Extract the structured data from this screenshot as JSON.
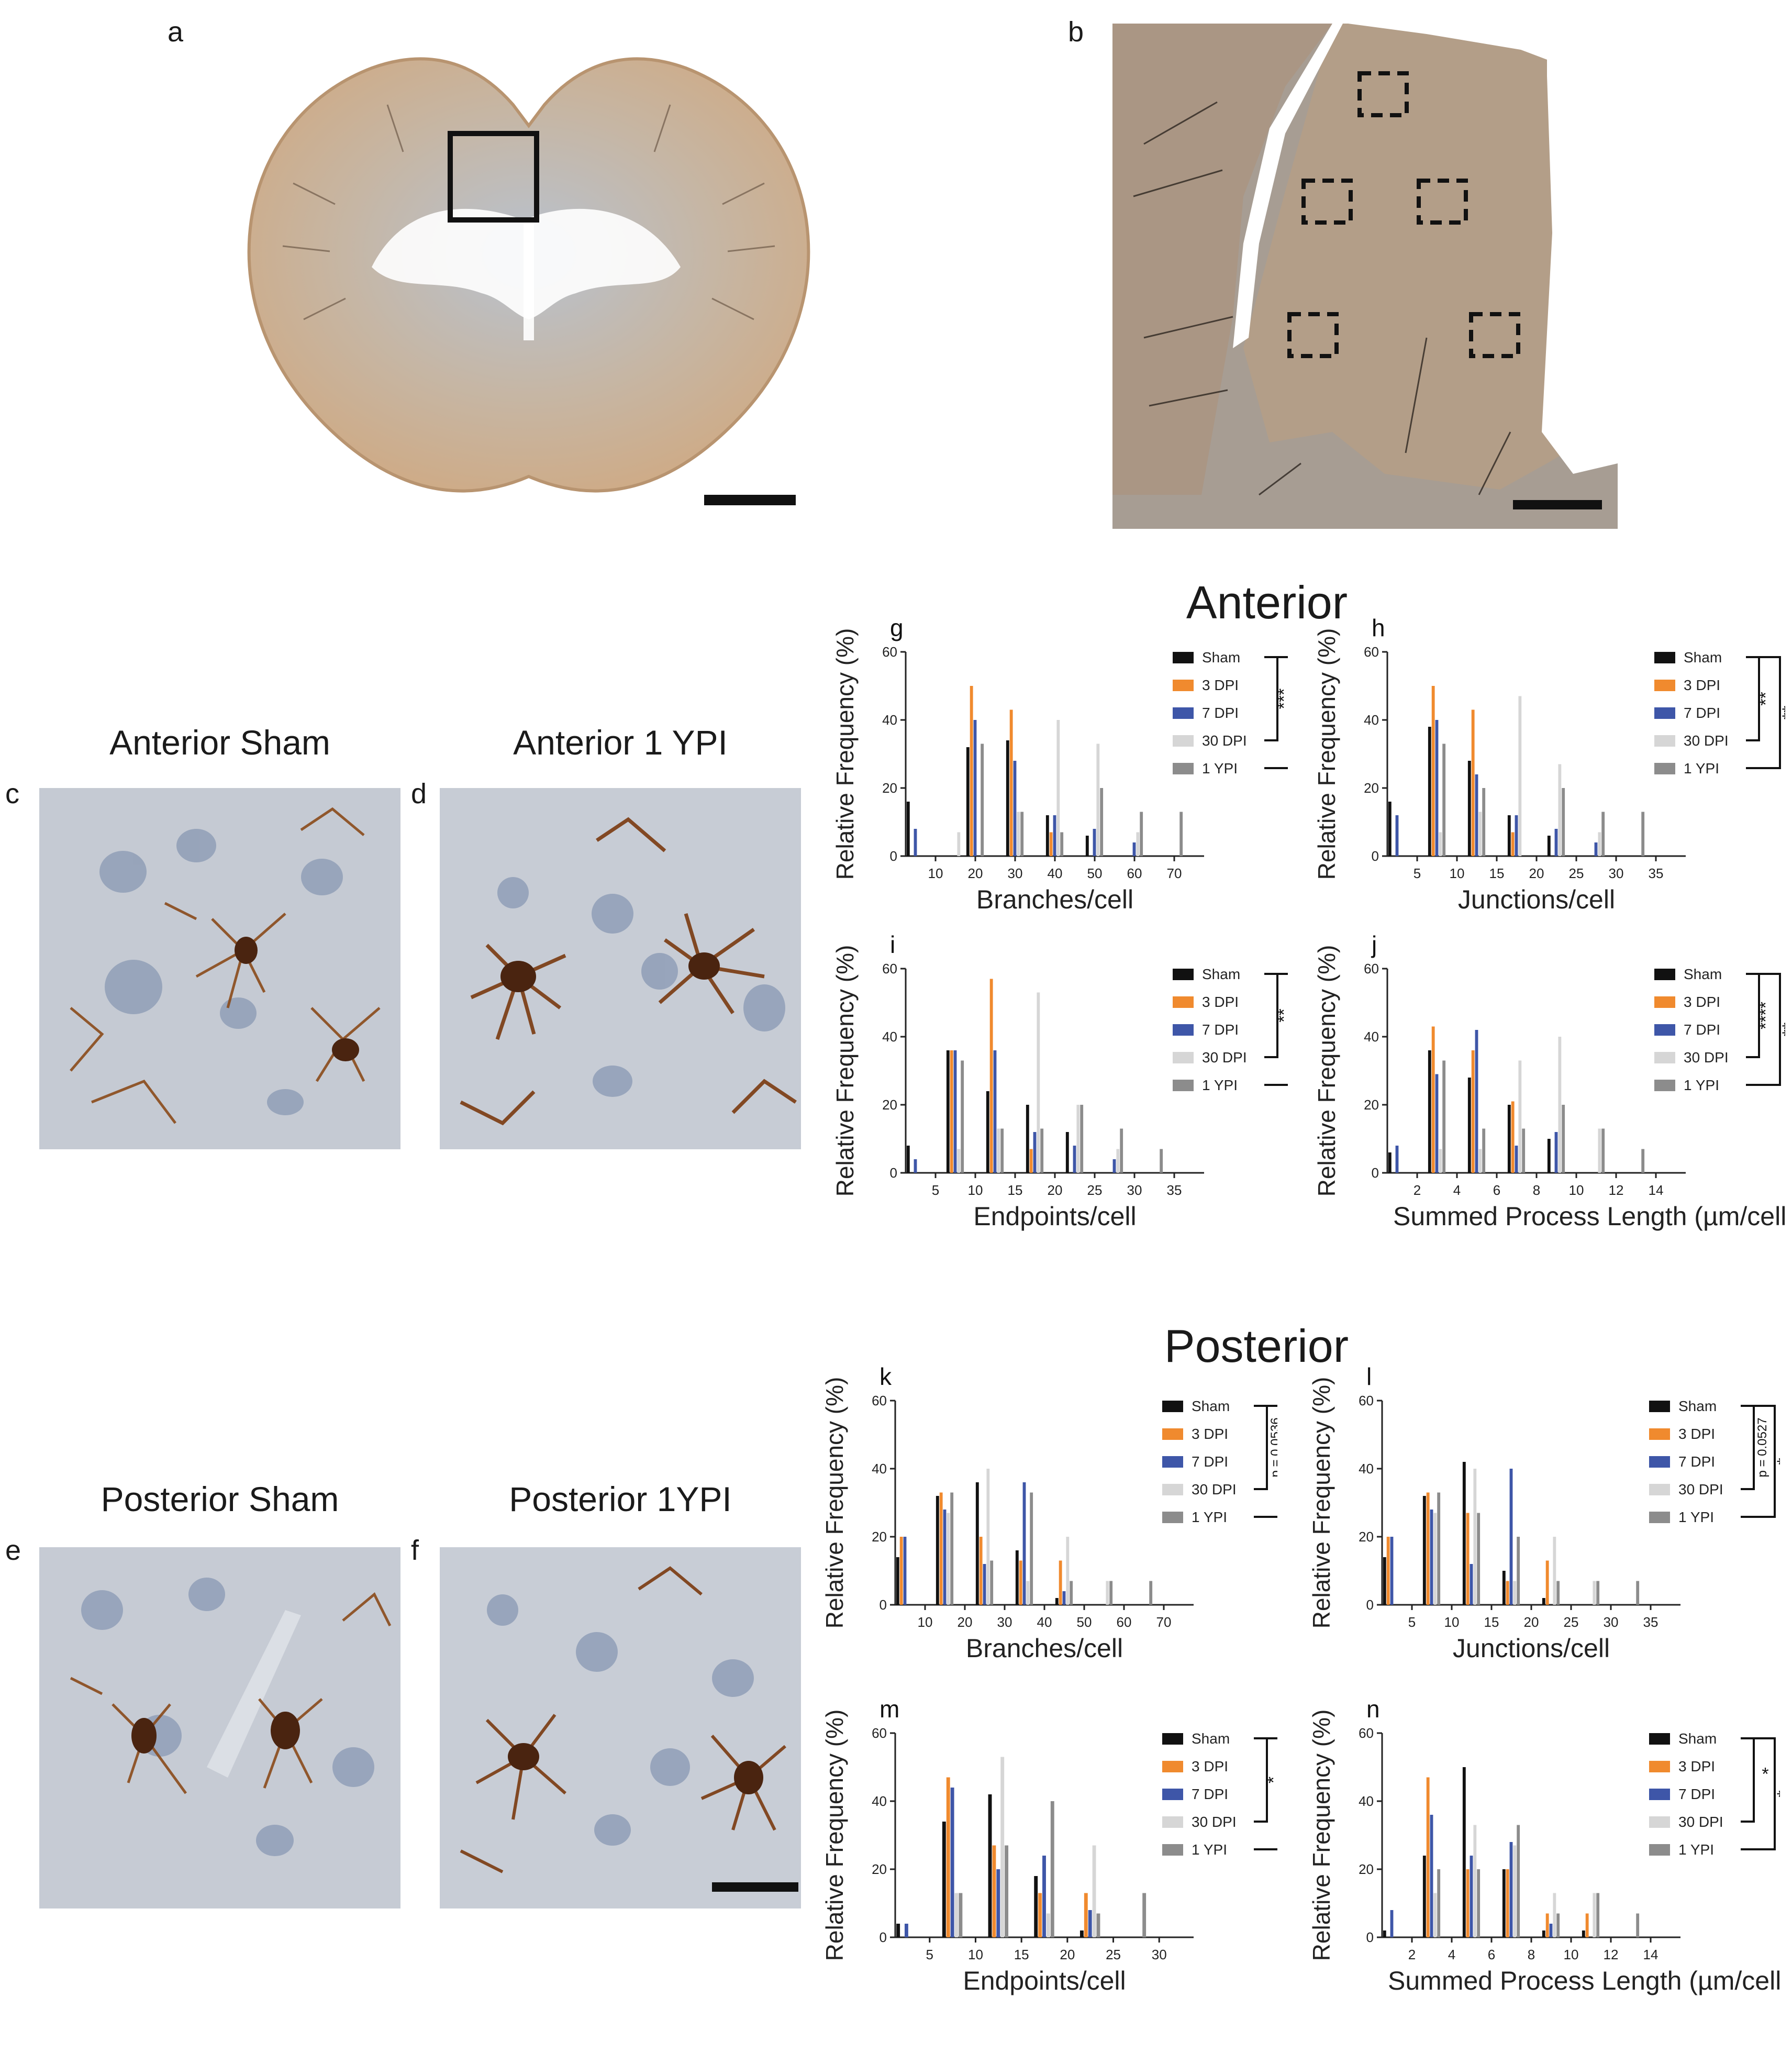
{
  "panel_labels": {
    "a": "a",
    "b": "b",
    "c": "c",
    "d": "d",
    "e": "e",
    "f": "f",
    "g": "g",
    "h": "h",
    "i": "i",
    "j": "j",
    "k": "k",
    "l": "l",
    "m": "m",
    "n": "n"
  },
  "image_titles": {
    "c": "Anterior Sham",
    "d": "Anterior 1 YPI",
    "e": "Posterior Sham",
    "f": "Posterior 1YPI"
  },
  "sections": {
    "anterior": "Anterior",
    "posterior": "Posterior"
  },
  "colors": {
    "Sham": "#111111",
    "3 DPI": "#f08a2e",
    "7 DPI": "#3e56a8",
    "30 DPI": "#d6d6d6",
    "1 YPI": "#8c8c8c",
    "tissue": "#c9ad8c",
    "white_matter": "#b9c4d2"
  },
  "legend_names": [
    "Sham",
    "3 DPI",
    "7 DPI",
    "30 DPI",
    "1 YPI"
  ],
  "chart_data": [
    {
      "id": "g",
      "type": "bar",
      "ylabel": "Relative Frequency (%)",
      "xlabel": "Branches/cell",
      "ylim": [
        0,
        60
      ],
      "yticks": [
        0,
        20,
        40,
        60
      ],
      "xticks": [
        10,
        20,
        30,
        40,
        50,
        60,
        70
      ],
      "categories": [
        5,
        10,
        15,
        20,
        25,
        30,
        35,
        40,
        45,
        50,
        55,
        60,
        65,
        70,
        75
      ],
      "series": [
        {
          "name": "Sham",
          "values": [
            16,
            0,
            0,
            32,
            0,
            34,
            0,
            12,
            0,
            6,
            0,
            0,
            0,
            0,
            0
          ]
        },
        {
          "name": "3 DPI",
          "values": [
            0,
            0,
            0,
            50,
            0,
            43,
            0,
            7,
            0,
            0,
            0,
            0,
            0,
            0,
            0
          ]
        },
        {
          "name": "7 DPI",
          "values": [
            8,
            0,
            0,
            40,
            0,
            28,
            0,
            12,
            0,
            8,
            0,
            4,
            0,
            0,
            0
          ]
        },
        {
          "name": "30 DPI",
          "values": [
            0,
            0,
            7,
            0,
            0,
            13,
            0,
            40,
            0,
            33,
            0,
            7,
            0,
            0,
            0
          ]
        },
        {
          "name": "1 YPI",
          "values": [
            0,
            0,
            0,
            33,
            0,
            13,
            0,
            7,
            0,
            20,
            0,
            13,
            0,
            13,
            0
          ]
        }
      ],
      "bracket_inner": "***",
      "bracket_outer": "**",
      "bracket_inner_vertical": true,
      "bracket_span": [
        0,
        4
      ]
    },
    {
      "id": "h",
      "type": "bar",
      "ylabel": "Relative Frequency (%)",
      "xlabel": "Junctions/cell",
      "ylim": [
        0,
        60
      ],
      "yticks": [
        0,
        20,
        40,
        60
      ],
      "xticks": [
        5,
        10,
        15,
        20,
        25,
        30,
        35
      ],
      "categories": [
        2.5,
        5,
        7.5,
        10,
        12.5,
        15,
        17.5,
        20,
        22.5,
        25,
        27.5,
        30,
        32.5,
        35,
        37.5
      ],
      "series": [
        {
          "name": "Sham",
          "values": [
            16,
            0,
            38,
            0,
            28,
            0,
            12,
            0,
            6,
            0,
            0,
            0,
            0,
            0,
            0
          ]
        },
        {
          "name": "3 DPI",
          "values": [
            0,
            0,
            50,
            0,
            43,
            0,
            7,
            0,
            0,
            0,
            0,
            0,
            0,
            0,
            0
          ]
        },
        {
          "name": "7 DPI",
          "values": [
            12,
            0,
            40,
            0,
            24,
            0,
            12,
            0,
            8,
            0,
            4,
            0,
            0,
            0,
            0
          ]
        },
        {
          "name": "30 DPI",
          "values": [
            0,
            0,
            7,
            0,
            13,
            0,
            47,
            0,
            27,
            0,
            7,
            0,
            0,
            0,
            0
          ]
        },
        {
          "name": "1 YPI",
          "values": [
            0,
            0,
            33,
            0,
            20,
            0,
            0,
            0,
            20,
            0,
            13,
            0,
            13,
            0,
            0
          ]
        }
      ],
      "bracket_inner": "**",
      "bracket_outer": "**",
      "bracket_inner_vertical": true,
      "bracket_span": [
        0,
        4
      ]
    },
    {
      "id": "i",
      "type": "bar",
      "ylabel": "Relative Frequency (%)",
      "xlabel": "Endpoints/cell",
      "ylim": [
        0,
        60
      ],
      "yticks": [
        0,
        20,
        40,
        60
      ],
      "xticks": [
        5,
        10,
        15,
        20,
        25,
        30,
        35
      ],
      "categories": [
        2.5,
        5,
        7.5,
        10,
        12.5,
        15,
        17.5,
        20,
        22.5,
        25,
        27.5,
        30,
        32.5,
        35,
        37.5
      ],
      "series": [
        {
          "name": "Sham",
          "values": [
            8,
            0,
            36,
            0,
            24,
            0,
            20,
            0,
            12,
            0,
            0,
            0,
            0,
            0,
            0
          ]
        },
        {
          "name": "3 DPI",
          "values": [
            0,
            0,
            36,
            0,
            57,
            0,
            7,
            0,
            0,
            0,
            0,
            0,
            0,
            0,
            0
          ]
        },
        {
          "name": "7 DPI",
          "values": [
            4,
            0,
            36,
            0,
            36,
            0,
            12,
            0,
            8,
            0,
            4,
            0,
            0,
            0,
            0
          ]
        },
        {
          "name": "30 DPI",
          "values": [
            0,
            0,
            7,
            0,
            13,
            0,
            53,
            0,
            20,
            0,
            7,
            0,
            0,
            0,
            0
          ]
        },
        {
          "name": "1 YPI",
          "values": [
            0,
            0,
            33,
            0,
            13,
            0,
            13,
            0,
            20,
            0,
            13,
            0,
            7,
            0,
            0
          ]
        }
      ],
      "bracket_inner": "**",
      "bracket_outer": "*",
      "bracket_inner_vertical": true,
      "bracket_span": [
        0,
        4
      ]
    },
    {
      "id": "j",
      "type": "bar",
      "ylabel": "Relative Frequency (%)",
      "xlabel": "Summed Process Length (µm/cell)",
      "ylim": [
        0,
        60
      ],
      "yticks": [
        0,
        20,
        40,
        60
      ],
      "xticks": [
        2,
        4,
        6,
        8,
        10,
        12,
        14
      ],
      "categories": [
        1,
        2,
        3,
        4,
        5,
        6,
        7,
        8,
        9,
        10,
        11,
        12,
        13,
        14,
        15
      ],
      "series": [
        {
          "name": "Sham",
          "values": [
            6,
            0,
            36,
            0,
            28,
            0,
            20,
            0,
            10,
            0,
            0,
            0,
            0,
            0,
            0
          ]
        },
        {
          "name": "3 DPI",
          "values": [
            0,
            0,
            43,
            0,
            36,
            0,
            21,
            0,
            0,
            0,
            0,
            0,
            0,
            0,
            0
          ]
        },
        {
          "name": "7 DPI",
          "values": [
            8,
            0,
            29,
            0,
            42,
            0,
            8,
            0,
            12,
            0,
            0,
            0,
            0,
            0,
            0
          ]
        },
        {
          "name": "30 DPI",
          "values": [
            0,
            0,
            7,
            0,
            7,
            0,
            33,
            0,
            40,
            0,
            13,
            0,
            0,
            0,
            0
          ]
        },
        {
          "name": "1 YPI",
          "values": [
            0,
            0,
            33,
            0,
            13,
            0,
            13,
            0,
            20,
            0,
            13,
            0,
            7,
            0,
            0
          ]
        }
      ],
      "bracket_inner": "****",
      "bracket_outer": "**",
      "bracket_inner_vertical": true,
      "bracket_span": [
        0,
        4
      ]
    },
    {
      "id": "k",
      "type": "bar",
      "ylabel": "Relative Frequency (%)",
      "xlabel": "Branches/cell",
      "ylim": [
        0,
        60
      ],
      "yticks": [
        0,
        20,
        40,
        60
      ],
      "xticks": [
        10,
        20,
        30,
        40,
        50,
        60,
        70
      ],
      "categories": [
        5,
        10,
        15,
        20,
        25,
        30,
        35,
        40,
        45,
        50,
        55,
        60,
        65,
        70,
        75
      ],
      "series": [
        {
          "name": "Sham",
          "values": [
            14,
            0,
            32,
            0,
            36,
            0,
            16,
            0,
            2,
            0,
            0,
            0,
            0,
            0,
            0
          ]
        },
        {
          "name": "3 DPI",
          "values": [
            20,
            0,
            33,
            0,
            20,
            0,
            13,
            0,
            13,
            0,
            0,
            0,
            0,
            0,
            0
          ]
        },
        {
          "name": "7 DPI",
          "values": [
            20,
            0,
            28,
            0,
            12,
            0,
            36,
            0,
            4,
            0,
            0,
            0,
            0,
            0,
            0
          ]
        },
        {
          "name": "30 DPI",
          "values": [
            0,
            0,
            27,
            0,
            40,
            0,
            7,
            0,
            20,
            0,
            7,
            0,
            0,
            0,
            0
          ]
        },
        {
          "name": "1 YPI",
          "values": [
            0,
            0,
            33,
            0,
            13,
            0,
            33,
            0,
            7,
            0,
            7,
            0,
            7,
            0,
            0
          ]
        }
      ],
      "bracket_inner": "p = 0.0536",
      "bracket_outer": "*",
      "bracket_inner_vertical": true,
      "bracket_span": [
        0,
        4
      ]
    },
    {
      "id": "l",
      "type": "bar",
      "ylabel": "Relative Frequency (%)",
      "xlabel": "Junctions/cell",
      "ylim": [
        0,
        60
      ],
      "yticks": [
        0,
        20,
        40,
        60
      ],
      "xticks": [
        5,
        10,
        15,
        20,
        25,
        30,
        35
      ],
      "categories": [
        2.5,
        5,
        7.5,
        10,
        12.5,
        15,
        17.5,
        20,
        22.5,
        25,
        27.5,
        30,
        32.5,
        35,
        37.5
      ],
      "series": [
        {
          "name": "Sham",
          "values": [
            14,
            0,
            32,
            0,
            42,
            0,
            10,
            0,
            2,
            0,
            0,
            0,
            0,
            0,
            0
          ]
        },
        {
          "name": "3 DPI",
          "values": [
            20,
            0,
            33,
            0,
            27,
            0,
            7,
            0,
            13,
            0,
            0,
            0,
            0,
            0,
            0
          ]
        },
        {
          "name": "7 DPI",
          "values": [
            20,
            0,
            28,
            0,
            12,
            0,
            40,
            0,
            0,
            0,
            0,
            0,
            0,
            0,
            0
          ]
        },
        {
          "name": "30 DPI",
          "values": [
            0,
            0,
            27,
            0,
            40,
            0,
            7,
            0,
            20,
            0,
            7,
            0,
            0,
            0,
            0
          ]
        },
        {
          "name": "1 YPI",
          "values": [
            0,
            0,
            33,
            0,
            27,
            0,
            20,
            0,
            7,
            0,
            7,
            0,
            7,
            0,
            0
          ]
        }
      ],
      "bracket_inner": "p = 0.0527",
      "bracket_outer": "*",
      "bracket_inner_vertical": true,
      "bracket_span": [
        0,
        4
      ]
    },
    {
      "id": "m",
      "type": "bar",
      "ylabel": "Relative Frequency (%)",
      "xlabel": "Endpoints/cell",
      "ylim": [
        0,
        60
      ],
      "yticks": [
        0,
        20,
        40,
        60
      ],
      "xticks": [
        5,
        10,
        15,
        20,
        25,
        30
      ],
      "categories": [
        2.5,
        5,
        7.5,
        10,
        12.5,
        15,
        17.5,
        20,
        22.5,
        25,
        27.5,
        30,
        32.5
      ],
      "series": [
        {
          "name": "Sham",
          "values": [
            4,
            0,
            34,
            0,
            42,
            0,
            18,
            0,
            2,
            0,
            0,
            0,
            0
          ]
        },
        {
          "name": "3 DPI",
          "values": [
            0,
            0,
            47,
            0,
            27,
            0,
            13,
            0,
            13,
            0,
            0,
            0,
            0
          ]
        },
        {
          "name": "7 DPI",
          "values": [
            4,
            0,
            44,
            0,
            20,
            0,
            24,
            0,
            8,
            0,
            0,
            0,
            0
          ]
        },
        {
          "name": "30 DPI",
          "values": [
            0,
            0,
            13,
            0,
            53,
            0,
            7,
            0,
            27,
            0,
            0,
            0,
            0
          ]
        },
        {
          "name": "1 YPI",
          "values": [
            0,
            0,
            13,
            0,
            27,
            0,
            40,
            0,
            7,
            0,
            13,
            0,
            0
          ]
        }
      ],
      "bracket_inner": "*",
      "bracket_outer": "**",
      "bracket_inner_vertical": true,
      "bracket_span": [
        0,
        4
      ]
    },
    {
      "id": "n",
      "type": "bar",
      "ylabel": "Relative Frequency (%)",
      "xlabel": "Summed Process Length (µm/cell)",
      "ylim": [
        0,
        60
      ],
      "yticks": [
        0,
        20,
        40,
        60
      ],
      "xticks": [
        2,
        4,
        6,
        8,
        10,
        12,
        14
      ],
      "categories": [
        1,
        2,
        3,
        4,
        5,
        6,
        7,
        8,
        9,
        10,
        11,
        12,
        13,
        14,
        15
      ],
      "series": [
        {
          "name": "Sham",
          "values": [
            2,
            0,
            24,
            0,
            50,
            0,
            20,
            0,
            2,
            0,
            2,
            0,
            0,
            0,
            0
          ]
        },
        {
          "name": "3 DPI",
          "values": [
            0,
            0,
            47,
            0,
            20,
            0,
            20,
            0,
            7,
            0,
            7,
            0,
            0,
            0,
            0
          ]
        },
        {
          "name": "7 DPI",
          "values": [
            8,
            0,
            36,
            0,
            24,
            0,
            28,
            0,
            4,
            0,
            0,
            0,
            0,
            0,
            0
          ]
        },
        {
          "name": "30 DPI",
          "values": [
            0,
            0,
            13,
            0,
            33,
            0,
            27,
            0,
            13,
            0,
            13,
            0,
            0,
            0,
            0
          ]
        },
        {
          "name": "1 YPI",
          "values": [
            0,
            0,
            20,
            0,
            20,
            0,
            33,
            0,
            7,
            0,
            13,
            0,
            7,
            0,
            0
          ]
        }
      ],
      "bracket_inner": "*",
      "bracket_outer": "*",
      "bracket_inner_vertical": false,
      "bracket_span": [
        0,
        4
      ]
    }
  ]
}
